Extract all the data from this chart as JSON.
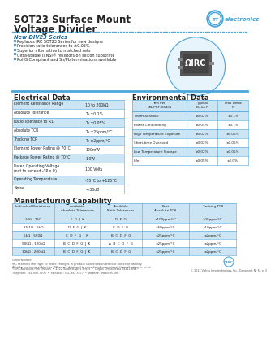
{
  "title_line1": "SOT23 Surface Mount",
  "title_line2": "Voltage Divider",
  "bg_color": "#ffffff",
  "header_blue": "#1a6496",
  "light_blue": "#cce5f5",
  "border_blue": "#4da6d9",
  "dark_text": "#222222",
  "new_div23_title": "New DIV23 Series",
  "bullet_points": [
    "Replaces IRC SOT23 Series for new designs",
    "Precision ratio tolerances to ±0.05%",
    "Superior alternative to matched sets",
    "Ultra-stable TaNSi® resistors on silicon substrate",
    "RoHS Compliant and Sn/Pb terminations available"
  ],
  "elec_title": "Electrical Data",
  "elec_rows": [
    [
      "Element Resistance Range",
      "10 to 200kΩ"
    ],
    [
      "Absolute Tolerance",
      "To ±0.1%"
    ],
    [
      "Ratio Tolerance to R1",
      "To ±0.05%"
    ],
    [
      "Absolute TCR",
      "To ±25ppm/°C"
    ],
    [
      "Tracking TCR",
      "To ±2ppm/°C"
    ],
    [
      "Element Power Rating @ 70°C",
      "120mW"
    ],
    [
      "Package Power Rating @ 70°C",
      "1.0W"
    ],
    [
      "Rated Operating Voltage\n(not to exceed √ P x R)",
      "100 Volts"
    ],
    [
      "Operating Temperature",
      "-55°C to +125°C"
    ],
    [
      "Noise",
      "<-30dB"
    ]
  ],
  "env_title": "Environmental Data",
  "env_headers": [
    "Test Per\nMIL-PRF-83401",
    "Typical\nDelta R",
    "Max Delta\nR"
  ],
  "env_rows": [
    [
      "Thermal Shock",
      "±0.02%",
      "±0.1%"
    ],
    [
      "Power Conditioning",
      "±0.05%",
      "±0.1%"
    ],
    [
      "High Temperature Exposure",
      "±0.02%",
      "±0.05%"
    ],
    [
      "Short-time Overload",
      "±0.02%",
      "±0.05%"
    ],
    [
      "Low Temperature Storage",
      "±0.02%",
      "±0.05%"
    ],
    [
      "Life",
      "±0.05%",
      "±2.0%"
    ]
  ],
  "mfg_title": "Manufacturing Capability",
  "mfg_headers": [
    "Individual Resistance",
    "Available\nAbsolute Tolerances",
    "Available\nRatio Tolerances",
    "Best\nAbsolute TCR",
    "Tracking TCR"
  ],
  "mfg_rows": [
    [
      "100 - 25Ω",
      "F  G  J  K",
      "D  F  G",
      "±100ppm/°C",
      "±25ppm/°C"
    ],
    [
      "25.1Ω - 5kΩ",
      "D  F  G  J  K",
      "C  D  F  G",
      "±50ppm/°C",
      "±10ppm/°C"
    ],
    [
      "5kΩ - 500Ω",
      "C  D  F  G  J  K",
      "B  C  D  F  G",
      "±25ppm/°C",
      "±2ppm/°C"
    ],
    [
      "500Ω - 100kΩ",
      "B  C  D  F  G  J  K",
      "A  B  C  D  F  G",
      "±25ppm/°C",
      "±2ppm/°C"
    ],
    [
      "10kΩ - 200kΩ",
      "B  C  D  F  G  J  K",
      "B  C  D  F  G",
      "±25ppm/°C",
      "±2ppm/°C"
    ]
  ],
  "footer_note": "General Note\nIRC reserves the right to make changes in product specification without notice or liability.\nAll information is subject to IRC's own data and is considered accurate at time of going to print.",
  "footer_company": "© IRC Advanced Film Division  •  4222 South Staples Street  •  Corpus Christi/Texas 78411 USA\nTelephone: 361-992-7900  •  Facsimile: 361-992-3377  •  Website: www.irctt.com",
  "footer_right": "© 2013 Vishay Intertechnology, Inc., Document N° 61 of 3",
  "dotted_line_color": "#4da6d9"
}
